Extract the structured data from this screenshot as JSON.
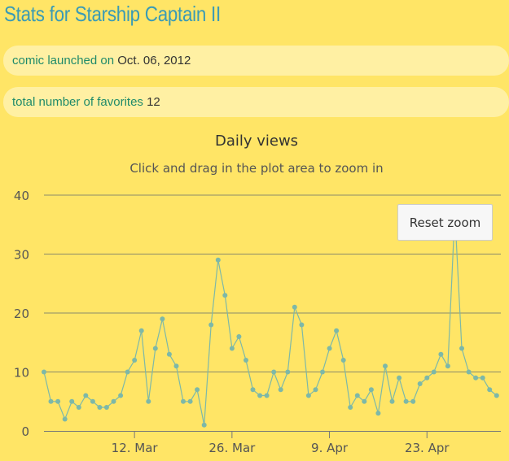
{
  "page": {
    "title": "Stats for Starship Captain II"
  },
  "stats": {
    "launched_label": "comic launched on",
    "launched_value": "Oct. 06, 2012",
    "favorites_label": "total number of favorites",
    "favorites_value": "12"
  },
  "chart_controls": {
    "reset_zoom_label": "Reset zoom"
  },
  "colors": {
    "background": "#ffe566",
    "stat_box": "#fff0a3",
    "title": "#3a9bb5",
    "series": "#7db8a8",
    "gridline": "#8a8a6a"
  },
  "chart_data": {
    "type": "line",
    "title": "Daily views",
    "subtitle": "Click and drag in the plot area to zoom in",
    "xlabel": "",
    "ylabel": "",
    "ylim": [
      0,
      40
    ],
    "y_ticks": [
      0,
      10,
      20,
      30,
      40
    ],
    "x_range": [
      0,
      78
    ],
    "x_ticks": [
      {
        "x": 13,
        "label": "12. Mar"
      },
      {
        "x": 27,
        "label": "26. Mar"
      },
      {
        "x": 41,
        "label": "9. Apr"
      },
      {
        "x": 55,
        "label": "23. Apr"
      }
    ],
    "series": [
      {
        "name": "Daily views",
        "values": [
          10,
          5,
          5,
          2,
          5,
          4,
          6,
          5,
          4,
          4,
          5,
          6,
          10,
          12,
          17,
          5,
          14,
          19,
          13,
          11,
          5,
          5,
          7,
          1,
          18,
          29,
          23,
          14,
          16,
          12,
          7,
          6,
          6,
          10,
          7,
          10,
          21,
          18,
          6,
          7,
          10,
          14,
          17,
          12,
          4,
          6,
          5,
          7,
          3,
          11,
          5,
          9,
          5,
          5,
          8,
          9,
          10,
          13,
          11,
          37,
          14,
          10,
          9,
          9,
          7,
          6
        ]
      }
    ]
  }
}
